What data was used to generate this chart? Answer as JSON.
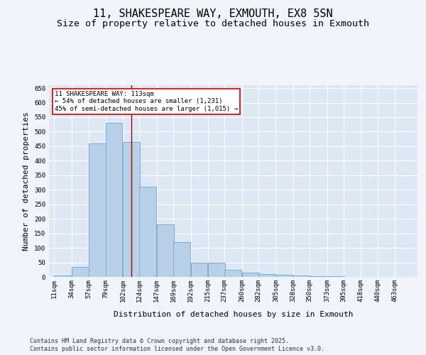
{
  "title_line1": "11, SHAKESPEARE WAY, EXMOUTH, EX8 5SN",
  "title_line2": "Size of property relative to detached houses in Exmouth",
  "xlabel": "Distribution of detached houses by size in Exmouth",
  "ylabel": "Number of detached properties",
  "bins": [
    11,
    34,
    57,
    79,
    102,
    124,
    147,
    169,
    192,
    215,
    237,
    260,
    282,
    305,
    328,
    350,
    373,
    395,
    418,
    440,
    463
  ],
  "bin_labels": [
    "11sqm",
    "34sqm",
    "57sqm",
    "79sqm",
    "102sqm",
    "124sqm",
    "147sqm",
    "169sqm",
    "192sqm",
    "215sqm",
    "237sqm",
    "260sqm",
    "282sqm",
    "305sqm",
    "328sqm",
    "350sqm",
    "373sqm",
    "395sqm",
    "418sqm",
    "440sqm",
    "463sqm"
  ],
  "values": [
    5,
    35,
    460,
    530,
    465,
    310,
    180,
    120,
    50,
    50,
    25,
    15,
    11,
    7,
    5,
    3,
    2,
    1,
    1,
    1,
    1
  ],
  "bar_color": "#b8d0e8",
  "bar_edge_color": "#7aadd4",
  "background_color": "#dde8f4",
  "grid_color": "#ffffff",
  "property_line_x": 113,
  "property_line_color": "#aa0000",
  "annotation_box_text": "11 SHAKESPEARE WAY: 113sqm\n← 54% of detached houses are smaller (1,231)\n45% of semi-detached houses are larger (1,015) →",
  "annotation_box_color": "#cc0000",
  "ylim": [
    0,
    660
  ],
  "yticks": [
    0,
    50,
    100,
    150,
    200,
    250,
    300,
    350,
    400,
    450,
    500,
    550,
    600,
    650
  ],
  "footer_line1": "Contains HM Land Registry data © Crown copyright and database right 2025.",
  "footer_line2": "Contains public sector information licensed under the Open Government Licence v3.0.",
  "title_fontsize": 11,
  "subtitle_fontsize": 9.5,
  "label_fontsize": 8,
  "tick_fontsize": 6.5,
  "annotation_fontsize": 6.5,
  "footer_fontsize": 6,
  "fig_bg": "#f0f4fa"
}
